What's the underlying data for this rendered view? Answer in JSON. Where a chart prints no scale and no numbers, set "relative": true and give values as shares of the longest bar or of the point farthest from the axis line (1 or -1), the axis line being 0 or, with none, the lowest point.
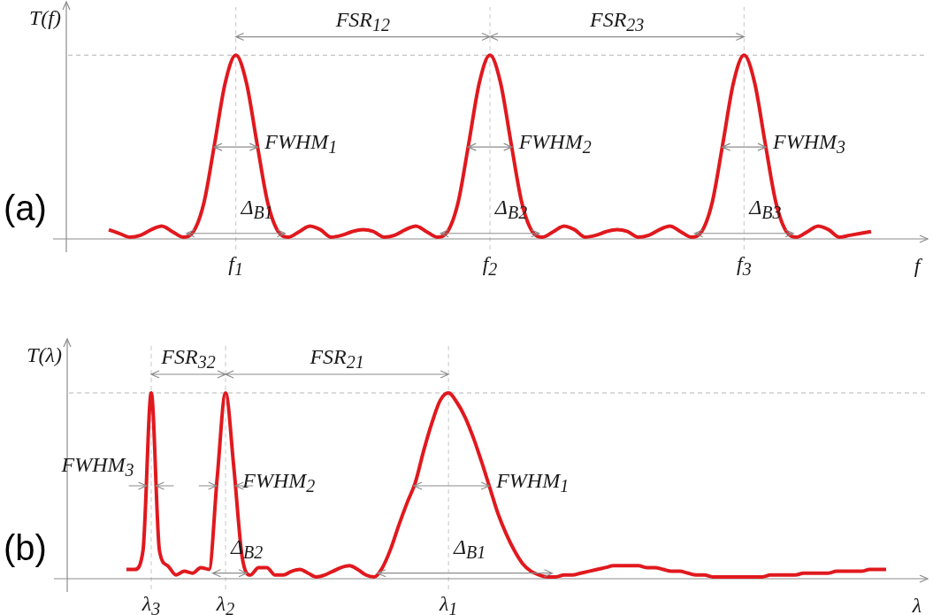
{
  "chart_data": [
    {
      "type": "line",
      "relative": true,
      "ylabel": "T(f)",
      "xlabel": "f",
      "categories": [
        null,
        null,
        null,
        null,
        null,
        null,
        null,
        null,
        null,
        null,
        null,
        null,
        "f$_{1}$",
        null,
        null,
        null,
        null,
        null,
        null,
        null,
        null,
        null,
        null,
        null,
        null,
        null,
        null,
        null,
        null,
        null,
        null,
        null,
        null,
        null,
        null,
        null,
        "f$_{2}$",
        null,
        null,
        null,
        null,
        null,
        null,
        null,
        null,
        null,
        null,
        null,
        null,
        null,
        null,
        null,
        null,
        null,
        null,
        null,
        null,
        null,
        null,
        null,
        "f$_{3}$",
        null,
        null,
        null,
        null,
        null,
        null,
        null,
        null,
        null,
        null,
        null,
        null
      ],
      "series": [
        {
          "color": "#e0191e",
          "values": [
            0.05,
            0.03,
            0.01,
            0.02,
            0.05,
            0.07,
            0.04,
            0.01,
            0.04,
            0.2,
            0.52,
            0.85,
            1,
            0.85,
            0.52,
            0.2,
            0.04,
            0.01,
            0.04,
            0.07,
            0.05,
            0.01,
            0.02,
            0.04,
            0.05,
            0.04,
            0.01,
            0.02,
            0.05,
            0.07,
            0.04,
            0.01,
            0.04,
            0.2,
            0.52,
            0.85,
            1,
            0.85,
            0.52,
            0.2,
            0.04,
            0.01,
            0.04,
            0.07,
            0.05,
            0.01,
            0.02,
            0.04,
            0.05,
            0.04,
            0.01,
            0.02,
            0.05,
            0.07,
            0.04,
            0.01,
            0.04,
            0.2,
            0.52,
            0.85,
            1,
            0.85,
            0.52,
            0.2,
            0.04,
            0.01,
            0.04,
            0.07,
            0.05,
            0.01,
            0.02,
            0.03,
            0.04
          ]
        }
      ],
      "ref_lines": [
        {
          "axis": "y",
          "value": 1,
          "color": "#b4b4b4",
          "line_style": "dashed"
        },
        {
          "axis": "x",
          "value": "f$_{1}$",
          "color": "#c8c8c8",
          "line_style": "dashed"
        },
        {
          "axis": "x",
          "value": "f$_{2}$",
          "color": "#c8c8c8",
          "line_style": "dashed"
        },
        {
          "axis": "x",
          "value": "f$_{3}$",
          "color": "#c8c8c8",
          "line_style": "dashed"
        }
      ],
      "annotations": [
        "(a)",
        "FSR$_{12}$",
        "FSR$_{23}$",
        {
          "text": "FWHM$_{1}$",
          "x": "f$_{1}$",
          "y": 0.5
        },
        {
          "text": "FWHM$_{2}$",
          "x": "f$_{2}$",
          "y": 0.5
        },
        {
          "text": "FWHM$_{3}$",
          "x": "f$_{3}$",
          "y": 0.5
        },
        {
          "text": "Δ$_{B1}$",
          "x": "f$_{1}$",
          "y": 0.03
        },
        {
          "text": "Δ$_{B2}$",
          "x": "f$_{2}$",
          "y": 0.03
        },
        {
          "text": "Δ$_{B3}$",
          "x": "f$_{3}$",
          "y": 0.03
        }
      ]
    },
    {
      "type": "line",
      "relative": true,
      "ylabel": "T(λ)",
      "xlabel": "λ",
      "categories": [
        null,
        null,
        null,
        "λ$_{3}$",
        null,
        null,
        null,
        null,
        null,
        null,
        null,
        null,
        "λ$_{2}$",
        null,
        null,
        null,
        null,
        null,
        null,
        null,
        null,
        null,
        null,
        null,
        null,
        null,
        null,
        null,
        null,
        null,
        null,
        null,
        null,
        null,
        null,
        null,
        null,
        null,
        null,
        "λ$_{1}$",
        null,
        null,
        null,
        null,
        null,
        null,
        null,
        null,
        null,
        null,
        null,
        null,
        null,
        null,
        null,
        null,
        null,
        null,
        null,
        null,
        null,
        null,
        null,
        null,
        null,
        null,
        null,
        null,
        null,
        null,
        null,
        null,
        null,
        null,
        null,
        null,
        null,
        null,
        null,
        null,
        null,
        null,
        null,
        null,
        null,
        null,
        null,
        null,
        null,
        null,
        null,
        null,
        null
      ],
      "series": [
        {
          "color": "#e0191e",
          "values": [
            0.05,
            0.05,
            0.15,
            1,
            0.15,
            0.07,
            0.02,
            0.04,
            0.03,
            0.06,
            0.05,
            0.55,
            1,
            0.6,
            0.12,
            0.02,
            0.06,
            0.06,
            0.02,
            0.02,
            0.04,
            0.05,
            0.03,
            0.01,
            0.02,
            0.04,
            0.06,
            0.07,
            0.05,
            0.02,
            0.01,
            0.06,
            0.16,
            0.29,
            0.41,
            0.52,
            0.69,
            0.84,
            0.96,
            1,
            0.95,
            0.87,
            0.76,
            0.63,
            0.49,
            0.35,
            0.24,
            0.15,
            0.08,
            0.04,
            0.02,
            0.01,
            0.01,
            0.02,
            0.02,
            0.03,
            0.04,
            0.05,
            0.06,
            0.07,
            0.07,
            0.07,
            0.07,
            0.06,
            0.06,
            0.05,
            0.04,
            0.04,
            0.03,
            0.02,
            0.02,
            0.01,
            0.01,
            0.01,
            0.01,
            0.01,
            0.01,
            0.01,
            0.02,
            0.02,
            0.02,
            0.02,
            0.03,
            0.03,
            0.03,
            0.03,
            0.04,
            0.04,
            0.04,
            0.04,
            0.05,
            0.05,
            0.05
          ]
        }
      ],
      "ref_lines": [
        {
          "axis": "y",
          "value": 1,
          "color": "#b4b4b4",
          "line_style": "dashed"
        },
        {
          "axis": "x",
          "value": "λ$_{3}$",
          "color": "#c8c8c8",
          "line_style": "dashed"
        },
        {
          "axis": "x",
          "value": "λ$_{2}$",
          "color": "#c8c8c8",
          "line_style": "dashed"
        },
        {
          "axis": "x",
          "value": "λ$_{1}$",
          "color": "#c8c8c8",
          "line_style": "dashed"
        }
      ],
      "annotations": [
        "(b)",
        "FSR$_{32}$",
        "FSR$_{21}$",
        {
          "text": "FWHM$_{3}$",
          "x": "λ$_{3}$",
          "y": 0.5
        },
        {
          "text": "FWHM$_{2}$",
          "x": "λ$_{2}$",
          "y": 0.5
        },
        {
          "text": "FWHM$_{1}$",
          "x": "λ$_{1}$",
          "y": 0.5
        },
        {
          "text": "Δ$_{B2}$",
          "x": "λ$_{2}$",
          "y": 0.03
        },
        {
          "text": "Δ$_{B1}$",
          "x": "λ$_{1}$",
          "y": 0.03
        }
      ]
    }
  ]
}
